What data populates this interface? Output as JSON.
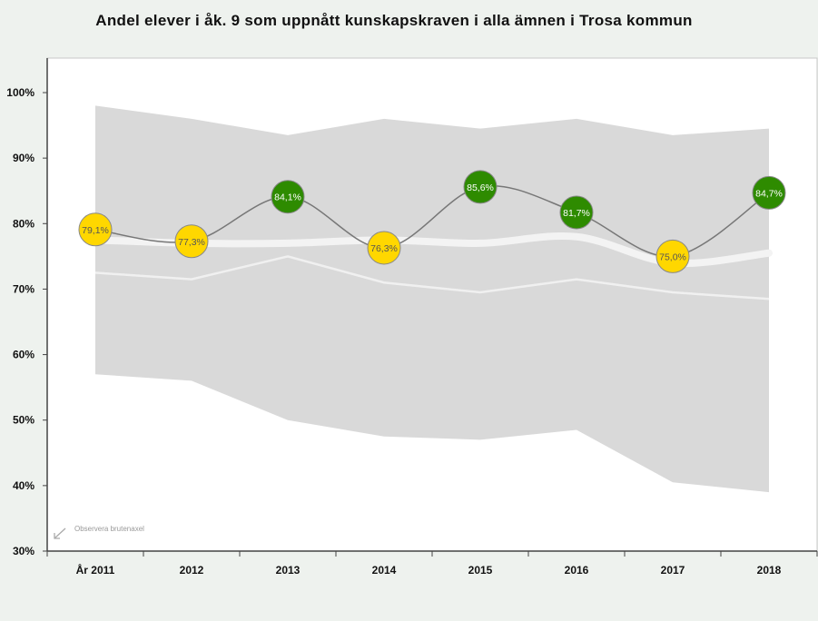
{
  "chart_data": {
    "type": "line",
    "title": "Andel elever i åk. 9 som uppnått kunskapskraven i alla ämnen i Trosa kommun",
    "categories": [
      "År 2011",
      "2012",
      "2013",
      "2014",
      "2015",
      "2016",
      "2017",
      "2018"
    ],
    "ylim": [
      30,
      100
    ],
    "yticks": [
      30,
      40,
      50,
      60,
      70,
      80,
      90,
      100
    ],
    "ytick_labels": [
      "30%",
      "40%",
      "50%",
      "60%",
      "70%",
      "80%",
      "90%",
      "100%"
    ],
    "grid": false,
    "legend": "none",
    "annotation": "Observera brutenaxel",
    "series": [
      {
        "values": [
          79.1,
          77.3,
          84.1,
          76.3,
          85.6,
          81.7,
          75.0,
          84.7
        ],
        "labels": [
          "79,1%",
          "77,3%",
          "84,1%",
          "76,3%",
          "85,6%",
          "81,7%",
          "75,0%",
          "84,7%"
        ],
        "above_reference": [
          false,
          false,
          true,
          false,
          true,
          true,
          false,
          true
        ]
      },
      {
        "values": [
          77.5,
          77.0,
          77.0,
          77.5,
          77.0,
          78.0,
          74.0,
          75.5
        ]
      },
      {
        "values": [
          72.5,
          71.5,
          75.0,
          71.0,
          69.5,
          71.5,
          69.5,
          68.5
        ]
      }
    ],
    "range_band": {
      "upper": [
        98.0,
        96.0,
        93.5,
        96.0,
        94.5,
        96.0,
        93.5,
        94.5
      ],
      "lower": [
        57.0,
        56.0,
        50.0,
        47.5,
        47.0,
        48.5,
        40.5,
        39.0
      ]
    },
    "colors": {
      "band": "#d9d9d9",
      "main_line": "#777777",
      "reference_line": "#f3f3f3",
      "average_line": "#f0f0f0",
      "marker_below": "#ffd700",
      "marker_above": "#2e8b00",
      "label_below": "#555555",
      "label_above": "#ffffff",
      "plot_bg": "#ffffff",
      "page_bg": "#eef2ee"
    }
  }
}
